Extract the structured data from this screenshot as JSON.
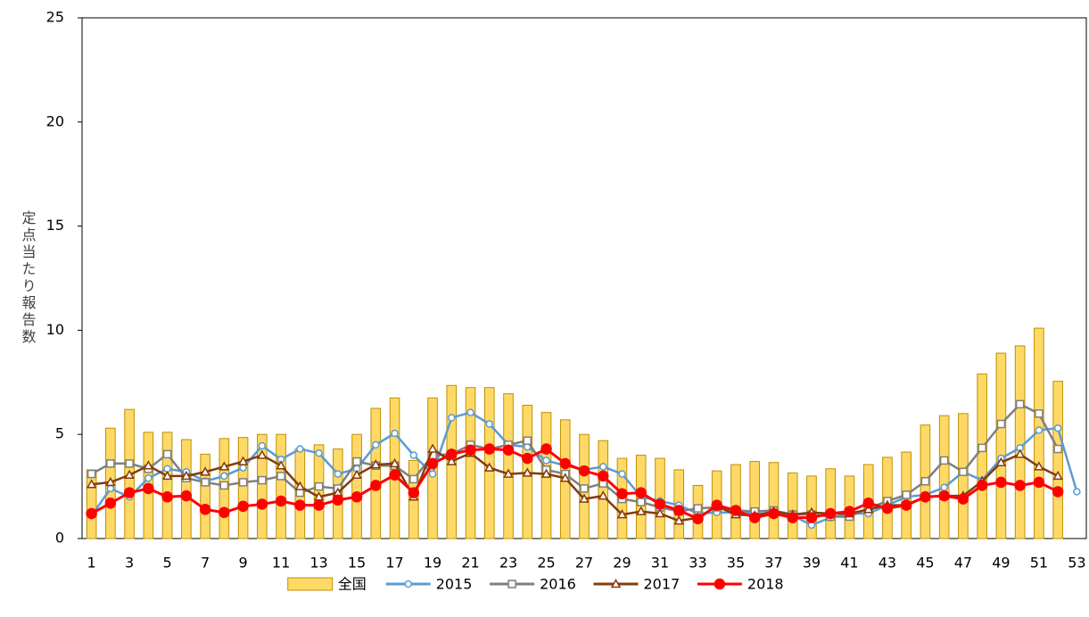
{
  "chart_data": {
    "type": "combo",
    "y_label": "定点当たり報告数",
    "categories": [
      "1",
      null,
      "3",
      null,
      "5",
      null,
      "7",
      null,
      "9",
      null,
      "11",
      null,
      "13",
      null,
      "15",
      null,
      "17",
      null,
      "19",
      null,
      "21",
      null,
      "23",
      null,
      "25",
      null,
      "27",
      null,
      "29",
      null,
      "31",
      null,
      "33",
      null,
      "35",
      null,
      "37",
      null,
      "39",
      null,
      "41",
      null,
      "43",
      null,
      "45",
      null,
      "47",
      null,
      "49",
      null,
      "51",
      null,
      "53"
    ],
    "ylim": [
      0,
      25
    ],
    "yticks": [
      0,
      5,
      10,
      15,
      20,
      25
    ],
    "grid": false,
    "legend": "bottom",
    "series": [
      {
        "name": "全国",
        "type": "bar",
        "color": "#ffd966",
        "edge": "#bf9000",
        "values": [
          3.3,
          5.3,
          6.2,
          5.1,
          5.1,
          4.75,
          4.05,
          4.8,
          4.85,
          5.0,
          5.0,
          4.3,
          4.5,
          4.3,
          5.0,
          6.25,
          6.75,
          3.75,
          6.75,
          7.35,
          7.25,
          7.25,
          6.95,
          6.4,
          6.05,
          5.7,
          5.0,
          4.7,
          3.85,
          4.0,
          3.85,
          3.3,
          2.55,
          3.25,
          3.55,
          3.7,
          3.65,
          3.15,
          3.0,
          3.35,
          3.0,
          3.55,
          3.9,
          4.15,
          5.45,
          5.9,
          6.0,
          7.9,
          8.9,
          9.25,
          10.1,
          7.55,
          null
        ]
      },
      {
        "name": "2015",
        "type": "line",
        "marker": "circle",
        "color": "#5b9bd5",
        "marker_fill": "#ffffff",
        "values": [
          1.1,
          2.4,
          2.0,
          2.9,
          3.35,
          3.2,
          2.75,
          3.0,
          3.4,
          4.45,
          3.8,
          4.3,
          4.1,
          3.1,
          3.35,
          4.5,
          5.05,
          4.0,
          3.1,
          5.8,
          6.05,
          5.5,
          4.5,
          4.4,
          3.75,
          3.5,
          3.3,
          3.45,
          3.1,
          2.0,
          1.8,
          1.6,
          1.2,
          1.25,
          1.25,
          1.2,
          1.2,
          1.1,
          0.65,
          1.0,
          1.2,
          1.2,
          1.6,
          2.0,
          2.1,
          2.45,
          3.2,
          2.8,
          3.85,
          4.35,
          5.2,
          5.3,
          2.25
        ]
      },
      {
        "name": "2016",
        "type": "line",
        "marker": "square",
        "color": "#7f7f7f",
        "marker_fill": "#ffffff",
        "values": [
          3.1,
          3.6,
          3.6,
          3.35,
          4.05,
          2.9,
          2.7,
          2.55,
          2.7,
          2.8,
          3.0,
          2.2,
          2.5,
          2.4,
          3.7,
          3.5,
          3.5,
          2.85,
          4.0,
          4.05,
          4.5,
          4.3,
          4.5,
          4.7,
          3.3,
          3.1,
          2.4,
          2.65,
          1.9,
          1.75,
          1.5,
          1.3,
          1.45,
          1.5,
          1.35,
          1.3,
          1.35,
          1.15,
          1.15,
          1.05,
          1.05,
          1.45,
          1.8,
          2.1,
          2.75,
          3.75,
          3.2,
          4.35,
          5.5,
          6.45,
          6.0,
          4.3,
          null
        ]
      },
      {
        "name": "2017",
        "type": "line",
        "marker": "triangle",
        "color": "#843c0c",
        "marker_fill": "#ffffff",
        "values": [
          2.6,
          2.7,
          3.05,
          3.5,
          3.0,
          3.0,
          3.2,
          3.45,
          3.7,
          4.0,
          3.5,
          2.5,
          2.0,
          2.2,
          3.05,
          3.55,
          3.6,
          2.0,
          4.3,
          3.7,
          4.1,
          3.4,
          3.1,
          3.15,
          3.1,
          2.9,
          1.9,
          2.05,
          1.15,
          1.3,
          1.2,
          0.85,
          1.0,
          1.55,
          1.15,
          1.1,
          1.3,
          1.15,
          1.25,
          1.2,
          1.2,
          1.4,
          1.6,
          1.6,
          2.0,
          2.05,
          2.05,
          2.75,
          3.65,
          4.05,
          3.45,
          3.0,
          null
        ]
      },
      {
        "name": "2018",
        "type": "line",
        "marker": "circle",
        "color": "#ff0000",
        "marker_fill": "#ff0000",
        "values": [
          1.2,
          1.7,
          2.2,
          2.4,
          2.0,
          2.05,
          1.4,
          1.25,
          1.55,
          1.65,
          1.8,
          1.6,
          1.6,
          1.85,
          2.0,
          2.55,
          3.05,
          2.2,
          3.6,
          4.05,
          4.25,
          4.3,
          4.25,
          3.85,
          4.3,
          3.6,
          3.25,
          3.0,
          2.15,
          2.2,
          1.65,
          1.35,
          0.95,
          1.6,
          1.35,
          1.0,
          1.2,
          1.0,
          1.0,
          1.2,
          1.3,
          1.7,
          1.45,
          1.6,
          2.0,
          2.05,
          1.9,
          2.55,
          2.7,
          2.55,
          2.7,
          2.25,
          null
        ]
      }
    ]
  }
}
